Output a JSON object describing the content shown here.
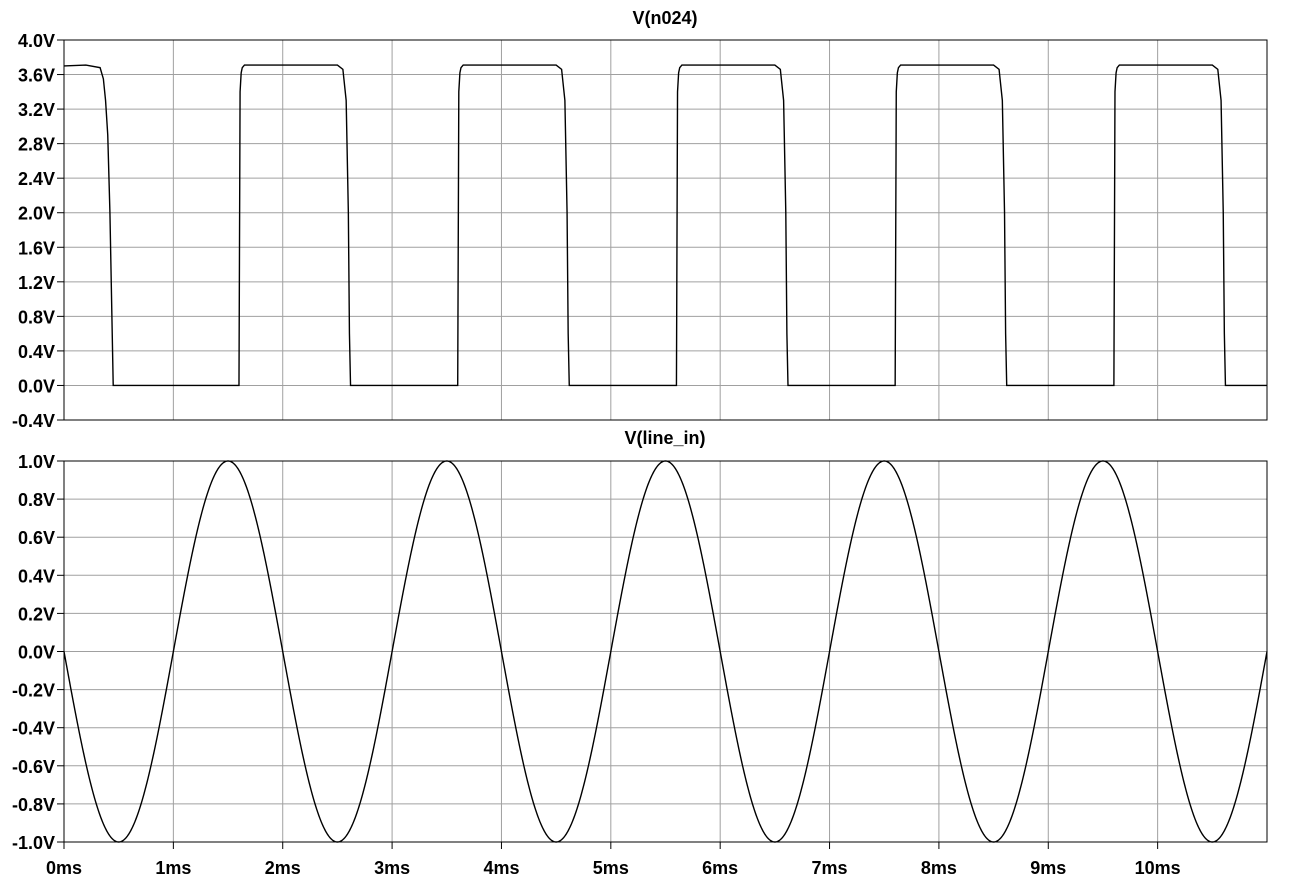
{
  "chart_data": [
    {
      "type": "line",
      "title": "V(n024)",
      "ylim": [
        -0.4,
        4.0
      ],
      "yticks": [
        "4.0V",
        "3.6V",
        "3.2V",
        "2.8V",
        "2.4V",
        "2.0V",
        "1.6V",
        "1.2V",
        "0.8V",
        "0.4V",
        "0.0V",
        "-0.4V"
      ],
      "grid": true,
      "series": [
        {
          "x": [
            0,
            0.2,
            0.33,
            0.36,
            0.38,
            0.4,
            0.42,
            0.45,
            0.48,
            0.55,
            0.8,
            1.2,
            1.5,
            1.6,
            1.61,
            1.62,
            1.63,
            1.65,
            2.5,
            2.55,
            2.58,
            2.6,
            2.61,
            2.62,
            2.64,
            3.6,
            3.61,
            3.62,
            3.63,
            3.65,
            4.5,
            4.55,
            4.58,
            4.6,
            4.61,
            4.62,
            4.64,
            5.6,
            5.61,
            5.62,
            5.63,
            5.65,
            6.5,
            6.55,
            6.58,
            6.6,
            6.61,
            6.62,
            6.64,
            7.6,
            7.61,
            7.62,
            7.63,
            7.65,
            8.5,
            8.55,
            8.58,
            8.6,
            8.61,
            8.62,
            8.64,
            9.6,
            9.61,
            9.62,
            9.63,
            9.65,
            10.5,
            10.55,
            10.58,
            10.6,
            10.61,
            10.62,
            10.64,
            11.0
          ],
          "y": [
            3.7,
            3.71,
            3.68,
            3.55,
            3.3,
            2.9,
            2.0,
            0.0,
            0.0,
            0.0,
            0.0,
            0.0,
            0.0,
            0.0,
            3.4,
            3.62,
            3.68,
            3.71,
            3.71,
            3.66,
            3.3,
            2.0,
            0.6,
            0.0,
            0.0,
            0.0,
            3.4,
            3.62,
            3.68,
            3.71,
            3.71,
            3.66,
            3.3,
            2.0,
            0.6,
            0.0,
            0.0,
            0.0,
            3.4,
            3.62,
            3.68,
            3.71,
            3.71,
            3.66,
            3.3,
            2.0,
            0.6,
            0.0,
            0.0,
            0.0,
            3.4,
            3.62,
            3.68,
            3.71,
            3.71,
            3.66,
            3.3,
            2.0,
            0.6,
            0.0,
            0.0,
            0.0,
            3.4,
            3.62,
            3.68,
            3.71,
            3.71,
            3.66,
            3.3,
            2.0,
            0.6,
            0.0,
            0.0,
            0.0
          ]
        }
      ]
    },
    {
      "type": "line",
      "title": "V(line_in)",
      "ylim": [
        -1.0,
        1.0
      ],
      "yticks": [
        "1.0V",
        "0.8V",
        "0.6V",
        "0.4V",
        "0.2V",
        "0.0V",
        "-0.2V",
        "-0.4V",
        "-0.6V",
        "-0.8V",
        "-1.0V"
      ],
      "grid": true,
      "series": [
        {
          "function": "sine",
          "amplitude": 1.0,
          "frequency_hz": 500,
          "phase": "inverted",
          "x_range": [
            0,
            11.0
          ]
        }
      ]
    }
  ],
  "x_axis": {
    "xlim": [
      0,
      11.0
    ],
    "ticks": [
      "0ms",
      "1ms",
      "2ms",
      "3ms",
      "4ms",
      "5ms",
      "6ms",
      "7ms",
      "8ms",
      "9ms",
      "10ms"
    ]
  },
  "colors": {
    "trace": "#000000",
    "grid": "#a0a0a0",
    "frame": "#000000"
  }
}
